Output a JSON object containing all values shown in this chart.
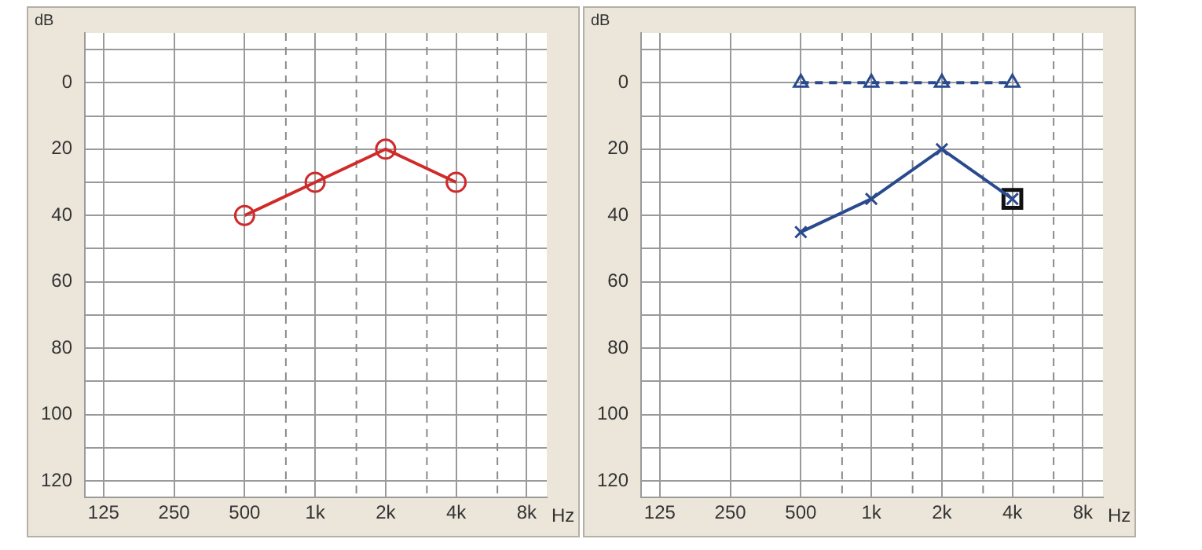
{
  "chart_data": [
    {
      "type": "line",
      "xlabel": "Hz",
      "ylabel": "dB",
      "log": "x",
      "grid": true,
      "legend": false,
      "xlim": [
        104,
        9750
      ],
      "xticks": [
        125,
        250,
        500,
        {
          "value": 1000,
          "label": "1k"
        },
        {
          "value": 2000,
          "label": "2k"
        },
        {
          "value": 4000,
          "label": "4k"
        },
        {
          "value": 8000,
          "label": "8k"
        }
      ],
      "ylim": [
        125,
        -15
      ],
      "yticks": [
        {
          "value": -10,
          "label": null
        },
        0,
        {
          "value": 10,
          "label": null
        },
        20,
        {
          "value": 30,
          "label": null
        },
        40,
        {
          "value": 50,
          "label": null
        },
        60,
        {
          "value": 70,
          "label": null
        },
        80,
        {
          "value": 90,
          "label": null
        },
        100,
        {
          "value": 110,
          "label": null
        },
        120
      ],
      "ref_lines": [
        {
          "axis": "x",
          "value": 750,
          "line_style": "dashed"
        },
        {
          "axis": "x",
          "value": 1500,
          "line_style": "dashed"
        },
        {
          "axis": "x",
          "value": 3000,
          "line_style": "dashed"
        },
        {
          "axis": "x",
          "value": 6000,
          "line_style": "dashed"
        }
      ],
      "x": [
        500,
        1000,
        2000,
        4000
      ],
      "series": [
        {
          "color": "#d02a2a",
          "marker": "circle",
          "line_style": "solid",
          "values": [
            40,
            30,
            20,
            30
          ]
        }
      ]
    },
    {
      "type": "line",
      "xlabel": "Hz",
      "ylabel": "dB",
      "log": "x",
      "grid": true,
      "legend": false,
      "xlim": [
        104,
        9750
      ],
      "xticks": [
        125,
        250,
        500,
        {
          "value": 1000,
          "label": "1k"
        },
        {
          "value": 2000,
          "label": "2k"
        },
        {
          "value": 4000,
          "label": "4k"
        },
        {
          "value": 8000,
          "label": "8k"
        }
      ],
      "ylim": [
        125,
        -15
      ],
      "yticks": [
        {
          "value": -10,
          "label": null
        },
        0,
        {
          "value": 10,
          "label": null
        },
        20,
        {
          "value": 30,
          "label": null
        },
        40,
        {
          "value": 50,
          "label": null
        },
        60,
        {
          "value": 70,
          "label": null
        },
        80,
        {
          "value": 90,
          "label": null
        },
        100,
        {
          "value": 110,
          "label": null
        },
        120
      ],
      "ref_lines": [
        {
          "axis": "x",
          "value": 750,
          "line_style": "dashed"
        },
        {
          "axis": "x",
          "value": 1500,
          "line_style": "dashed"
        },
        {
          "axis": "x",
          "value": 3000,
          "line_style": "dashed"
        },
        {
          "axis": "x",
          "value": 6000,
          "line_style": "dashed"
        }
      ],
      "x": [
        500,
        1000,
        2000,
        4000
      ],
      "series": [
        {
          "color": "#2a4a8f",
          "marker": "triangle",
          "line_style": "dashed",
          "values": [
            0,
            0,
            0,
            0
          ]
        },
        {
          "color": "#2a4a8f",
          "marker": "cross",
          "line_style": "solid",
          "values": [
            45,
            35,
            20,
            35
          ]
        },
        {
          "type": "scatter",
          "color": "#111111",
          "marker": "square",
          "x": [
            4000
          ],
          "values": [
            35
          ]
        }
      ]
    }
  ]
}
